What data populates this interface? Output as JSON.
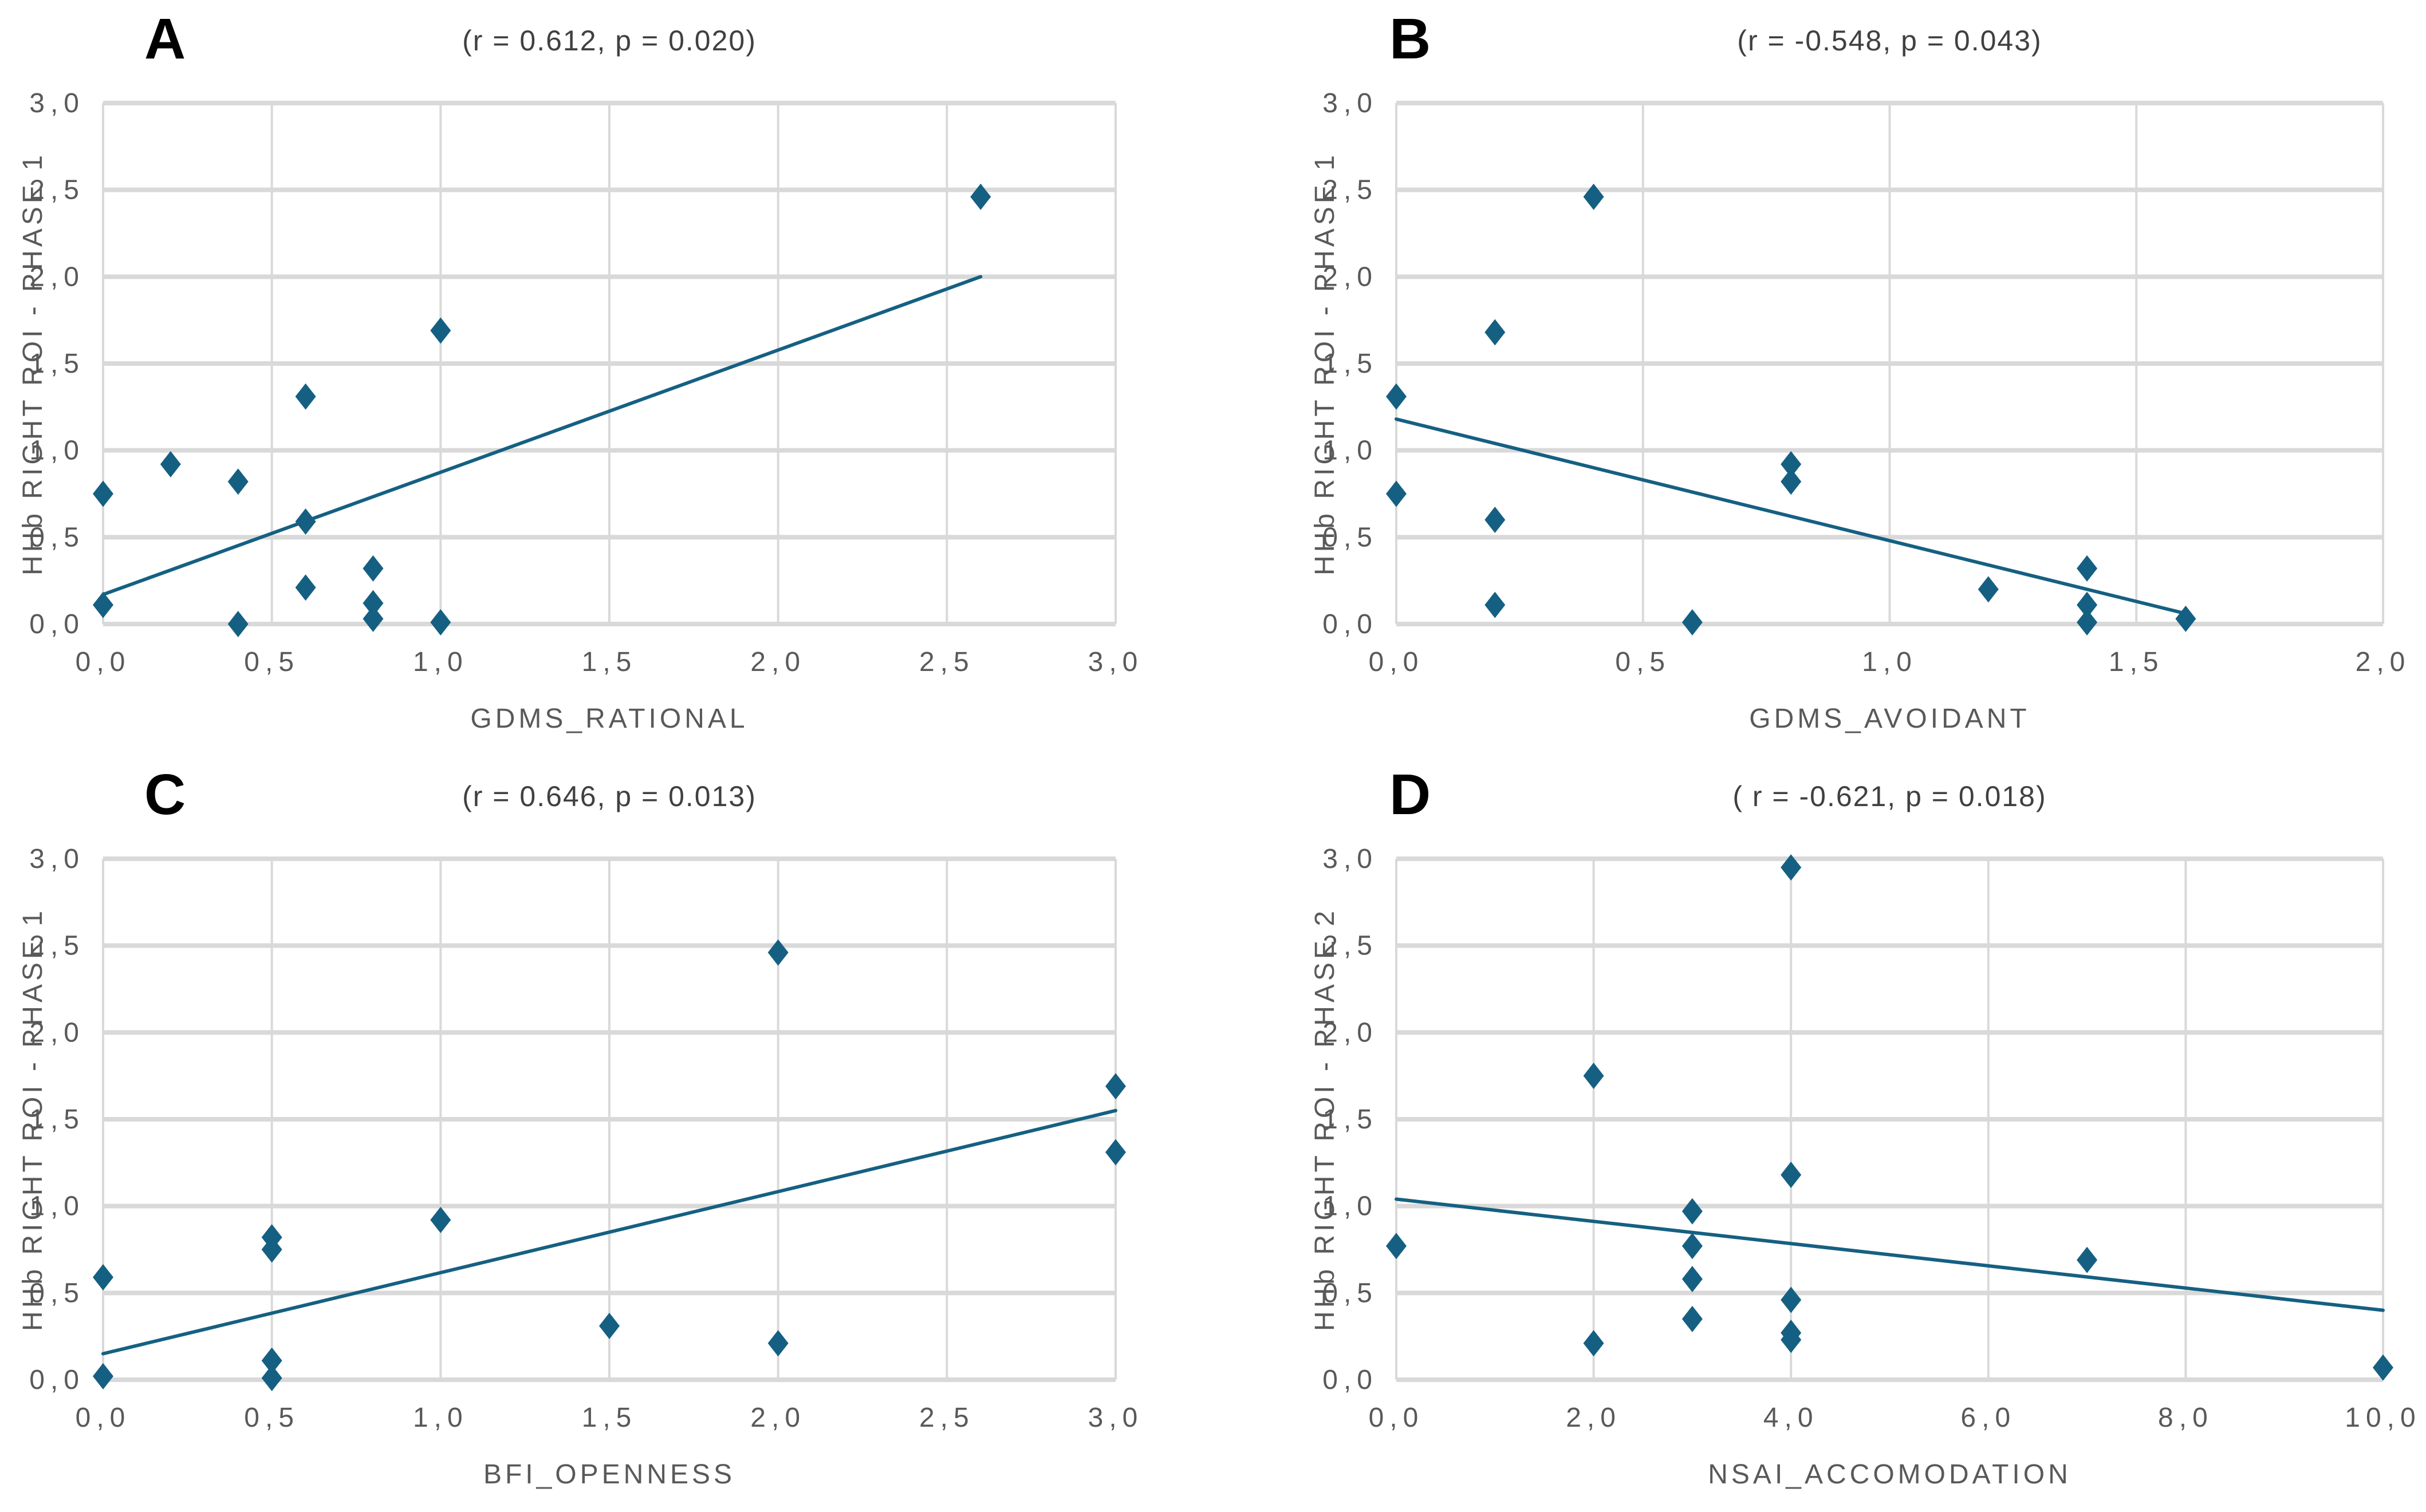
{
  "style": {
    "background": "#FFFFFF",
    "accent": "#156082",
    "grid_color": "#D9D9D9",
    "tick_color": "#595959",
    "title_color": "#404040",
    "letter_color": "#000000",
    "marker": "diamond"
  },
  "chart_data": [
    {
      "type": "scatter",
      "panel_letter": "A",
      "title": "(r = 0.612, p = 0.020)",
      "xlabel": "GDMS_RATIONAL",
      "ylabel": "HHb RIGHT ROI - PHASE 1",
      "xlim": [
        0,
        3
      ],
      "ylim": [
        0,
        3
      ],
      "x_ticks": [
        0,
        0.5,
        1,
        1.5,
        2,
        2.5,
        3
      ],
      "x_tick_labels": [
        "0,0",
        "0,5",
        "1,0",
        "1,5",
        "2,0",
        "2,5",
        "3,0"
      ],
      "y_ticks": [
        0,
        0.5,
        1,
        1.5,
        2,
        2.5,
        3
      ],
      "y_tick_labels": [
        "0,0",
        "0,5",
        "1,0",
        "1,5",
        "2,0",
        "2,5",
        "3,0"
      ],
      "grid": true,
      "legend": "none",
      "points": [
        [
          0.0,
          0.75
        ],
        [
          0.0,
          0.11
        ],
        [
          0.2,
          0.92
        ],
        [
          0.4,
          0.82
        ],
        [
          0.4,
          0.0
        ],
        [
          0.6,
          1.31
        ],
        [
          0.6,
          0.59
        ],
        [
          0.6,
          0.21
        ],
        [
          0.8,
          0.32
        ],
        [
          0.8,
          0.12
        ],
        [
          0.8,
          0.03
        ],
        [
          1.0,
          1.69
        ],
        [
          1.0,
          0.01
        ],
        [
          2.6,
          2.46
        ]
      ],
      "trendline": {
        "x1": 0,
        "y1": 0.17,
        "x2": 2.6,
        "y2": 2.0
      }
    },
    {
      "type": "scatter",
      "panel_letter": "B",
      "title": "(r = -0.548, p = 0.043)",
      "xlabel": "GDMS_AVOIDANT",
      "ylabel": "HHb RIGHT ROI - PHASE 1",
      "xlim": [
        0,
        2
      ],
      "ylim": [
        0,
        3
      ],
      "x_ticks": [
        0,
        0.5,
        1,
        1.5,
        2
      ],
      "x_tick_labels": [
        "0,0",
        "0,5",
        "1,0",
        "1,5",
        "2,0"
      ],
      "y_ticks": [
        0,
        0.5,
        1,
        1.5,
        2,
        2.5,
        3
      ],
      "y_tick_labels": [
        "0,0",
        "0,5",
        "1,0",
        "1,5",
        "2,0",
        "2,5",
        "3,0"
      ],
      "grid": true,
      "legend": "none",
      "points": [
        [
          0.0,
          1.31
        ],
        [
          0.0,
          0.75
        ],
        [
          0.2,
          1.68
        ],
        [
          0.2,
          0.6
        ],
        [
          0.2,
          0.11
        ],
        [
          0.4,
          2.46
        ],
        [
          0.6,
          0.01
        ],
        [
          0.8,
          0.92
        ],
        [
          0.8,
          0.82
        ],
        [
          1.2,
          0.2
        ],
        [
          1.4,
          0.32
        ],
        [
          1.4,
          0.11
        ],
        [
          1.4,
          0.01
        ],
        [
          1.6,
          0.03
        ]
      ],
      "trendline": {
        "x1": 0,
        "y1": 1.18,
        "x2": 1.6,
        "y2": 0.06
      }
    },
    {
      "type": "scatter",
      "panel_letter": "C",
      "title": "(r = 0.646, p = 0.013)",
      "xlabel": "BFI_OPENNESS",
      "ylabel": "HHb RIGHT ROI - PHASE 1",
      "xlim": [
        0,
        3
      ],
      "ylim": [
        0,
        3
      ],
      "x_ticks": [
        0,
        0.5,
        1,
        1.5,
        2,
        2.5,
        3
      ],
      "x_tick_labels": [
        "0,0",
        "0,5",
        "1,0",
        "1,5",
        "2,0",
        "2,5",
        "3,0"
      ],
      "y_ticks": [
        0,
        0.5,
        1,
        1.5,
        2,
        2.5,
        3
      ],
      "y_tick_labels": [
        "0,0",
        "0,5",
        "1,0",
        "1,5",
        "2,0",
        "2,5",
        "3,0"
      ],
      "grid": true,
      "legend": "none",
      "points": [
        [
          0.0,
          0.59
        ],
        [
          0.0,
          0.02
        ],
        [
          0.5,
          0.82
        ],
        [
          0.5,
          0.75
        ],
        [
          0.5,
          0.11
        ],
        [
          0.5,
          0.01
        ],
        [
          1.0,
          0.92
        ],
        [
          1.5,
          0.31
        ],
        [
          2.0,
          2.46
        ],
        [
          2.0,
          0.21
        ],
        [
          3.0,
          1.69
        ],
        [
          3.0,
          1.31
        ]
      ],
      "trendline": {
        "x1": 0,
        "y1": 0.15,
        "x2": 3.0,
        "y2": 1.55
      }
    },
    {
      "type": "scatter",
      "panel_letter": "D",
      "title": "( r = -0.621, p = 0.018)",
      "xlabel": "NSAI_ACCOMODATION",
      "ylabel": "HHb RIGHT ROI - PHASE 2",
      "xlim": [
        0,
        10
      ],
      "ylim": [
        0,
        3
      ],
      "x_ticks": [
        0,
        2,
        4,
        6,
        8,
        10
      ],
      "x_tick_labels": [
        "0,0",
        "2,0",
        "4,0",
        "6,0",
        "8,0",
        "10,0"
      ],
      "y_ticks": [
        0,
        0.5,
        1,
        1.5,
        2,
        2.5,
        3
      ],
      "y_tick_labels": [
        "0,0",
        "0,5",
        "1,0",
        "1,5",
        "2,0",
        "2,5",
        "3,0"
      ],
      "grid": true,
      "legend": "none",
      "points": [
        [
          0.0,
          0.77
        ],
        [
          2.0,
          1.75
        ],
        [
          2.0,
          0.21
        ],
        [
          3.0,
          0.97
        ],
        [
          3.0,
          0.77
        ],
        [
          3.0,
          0.58
        ],
        [
          3.0,
          0.35
        ],
        [
          4.0,
          2.95
        ],
        [
          4.0,
          1.18
        ],
        [
          4.0,
          0.46
        ],
        [
          4.0,
          0.27
        ],
        [
          4.0,
          0.23
        ],
        [
          7.0,
          0.69
        ],
        [
          10.0,
          0.07
        ]
      ],
      "trendline": {
        "x1": 0,
        "y1": 1.04,
        "x2": 10,
        "y2": 0.4
      }
    }
  ]
}
